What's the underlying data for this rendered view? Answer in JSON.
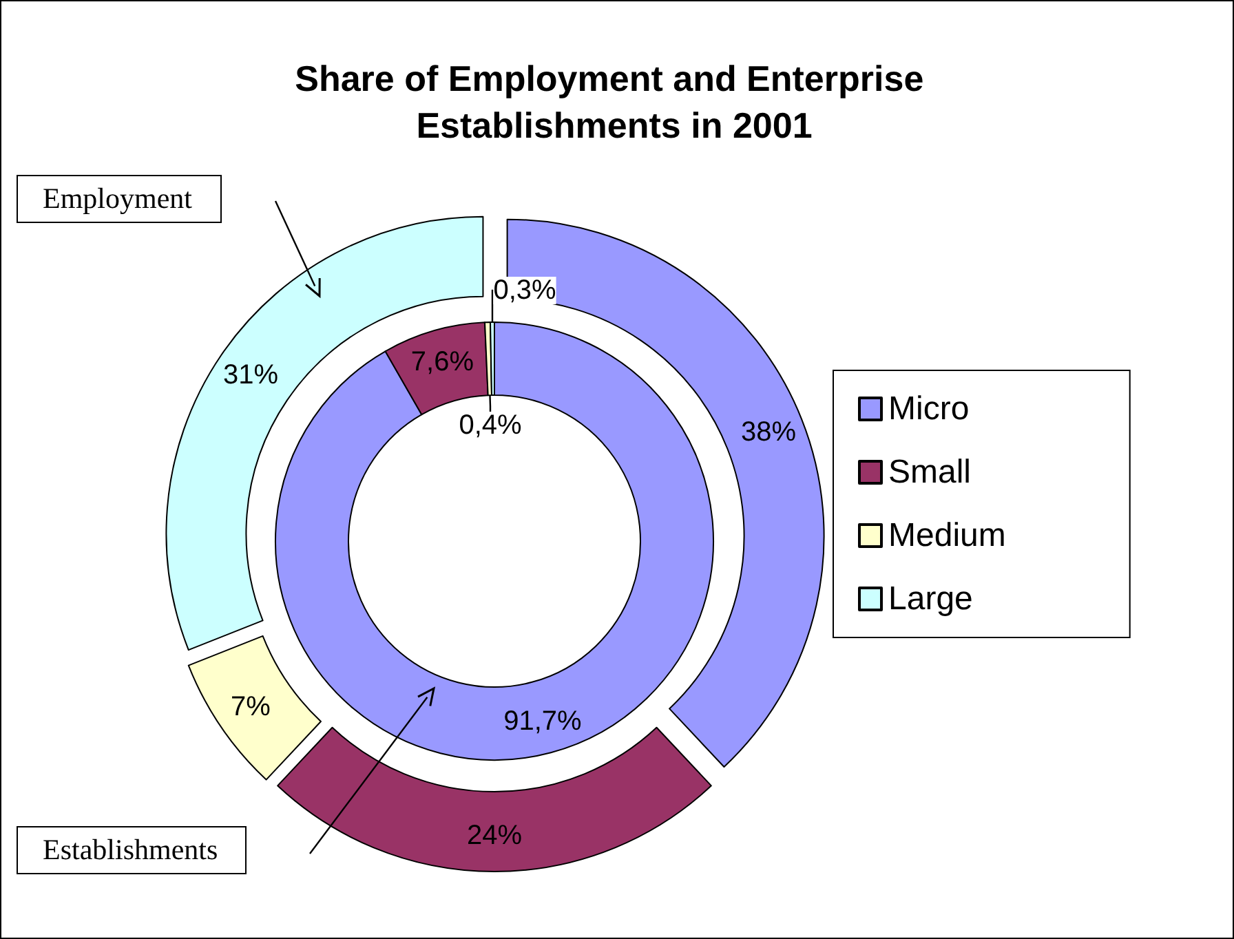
{
  "chart_data": {
    "type": "donut",
    "title": "Share of Employment and Enterprise Establishments in 2001",
    "categories": [
      "Micro",
      "Small",
      "Medium",
      "Large"
    ],
    "colors": [
      "#9999ff",
      "#993366",
      "#ffffcc",
      "#ccffff"
    ],
    "series": [
      {
        "name": "Establishments",
        "values": [
          91.7,
          7.6,
          0.4,
          0.3
        ],
        "value_labels": [
          "91,7%",
          "7,6%",
          "0,4%",
          "0,3%"
        ]
      },
      {
        "name": "Employment",
        "values": [
          38,
          24,
          7,
          31
        ],
        "value_labels": [
          "38%",
          "24%",
          "7%",
          "31%"
        ]
      }
    ],
    "legend": "right"
  }
}
